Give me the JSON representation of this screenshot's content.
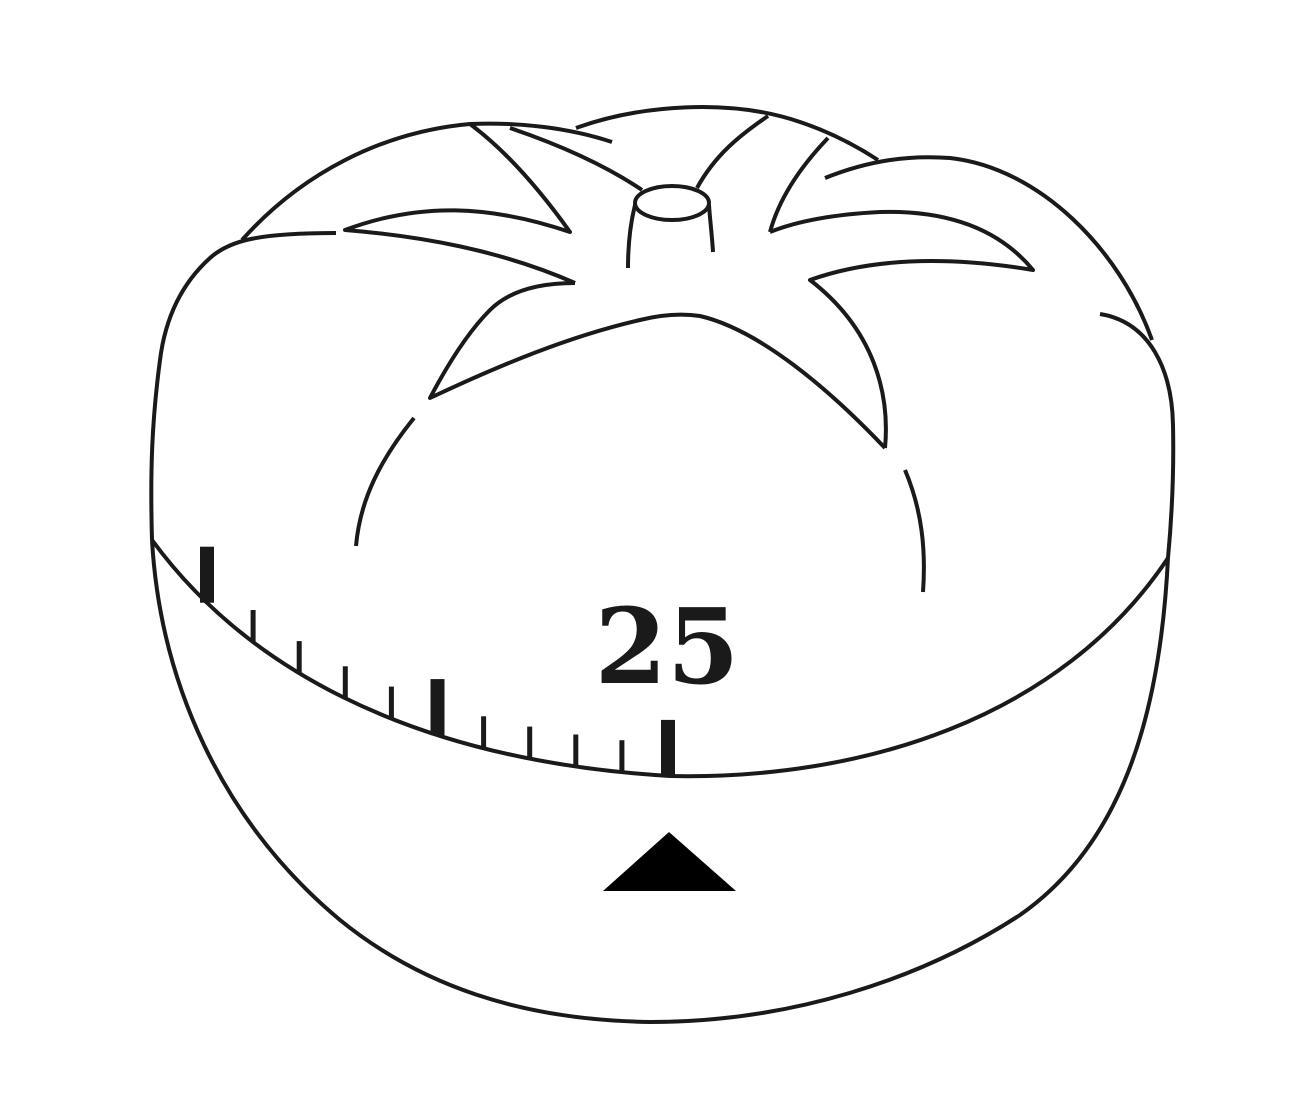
{
  "dial": {
    "number_label": "25",
    "ticks": [
      {
        "value": 25,
        "major": true
      },
      {
        "value": 24,
        "major": false
      },
      {
        "value": 23,
        "major": false
      },
      {
        "value": 22,
        "major": false
      },
      {
        "value": 21,
        "major": false
      },
      {
        "value": 20,
        "major": true
      },
      {
        "value": 19,
        "major": false
      },
      {
        "value": 18,
        "major": false
      },
      {
        "value": 17,
        "major": false
      },
      {
        "value": 16,
        "major": false
      },
      {
        "value": 15,
        "major": true
      }
    ]
  },
  "pointer_icon": "triangle-up-icon",
  "colors": {
    "ink": "#1a1a1a",
    "background": "#ffffff"
  }
}
